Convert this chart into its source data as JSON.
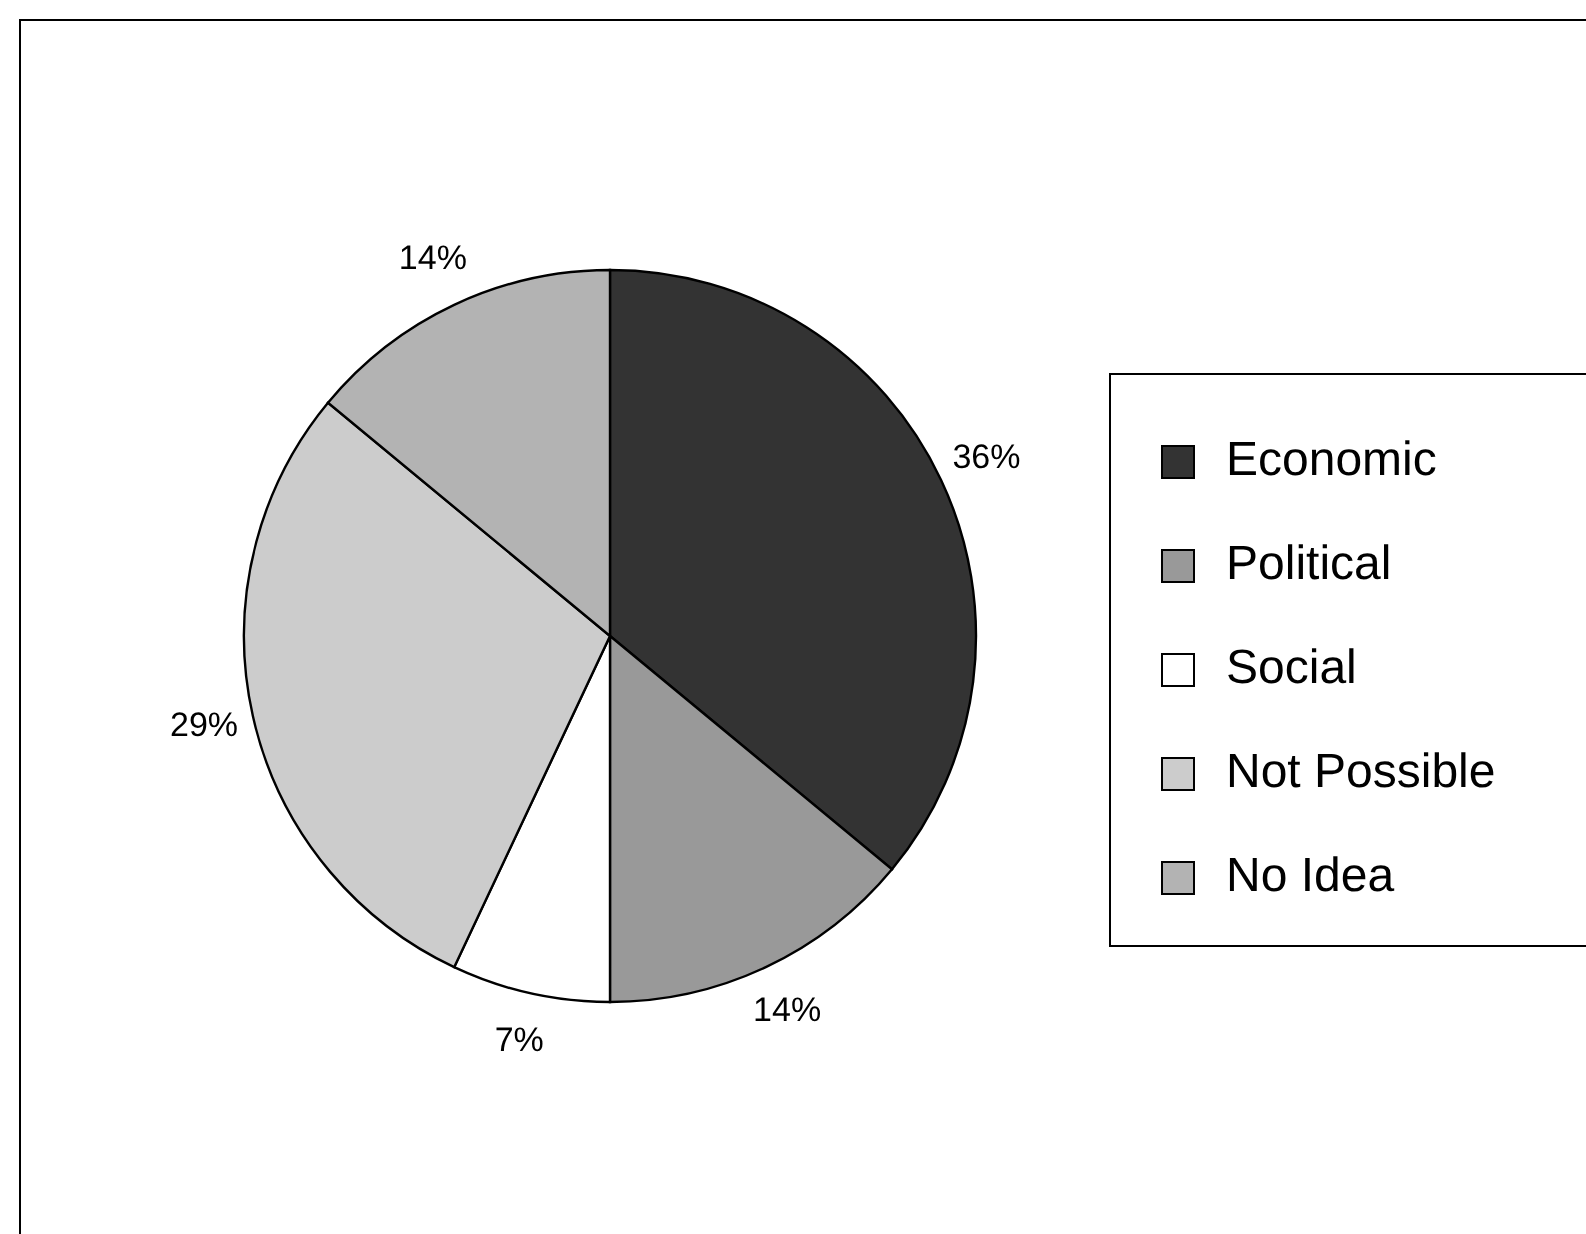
{
  "chart_data": {
    "type": "pie",
    "categories": [
      "Economic",
      "Political",
      "Social",
      "Not Possible",
      "No Idea"
    ],
    "values": [
      36,
      14,
      7,
      29,
      14
    ],
    "colors": [
      "#333333",
      "#999999",
      "#ffffff",
      "#cccccc",
      "#b3b3b3"
    ],
    "legend": "right",
    "value_labels": [
      "36%",
      "14%",
      "7%",
      "29%",
      "14%"
    ]
  }
}
